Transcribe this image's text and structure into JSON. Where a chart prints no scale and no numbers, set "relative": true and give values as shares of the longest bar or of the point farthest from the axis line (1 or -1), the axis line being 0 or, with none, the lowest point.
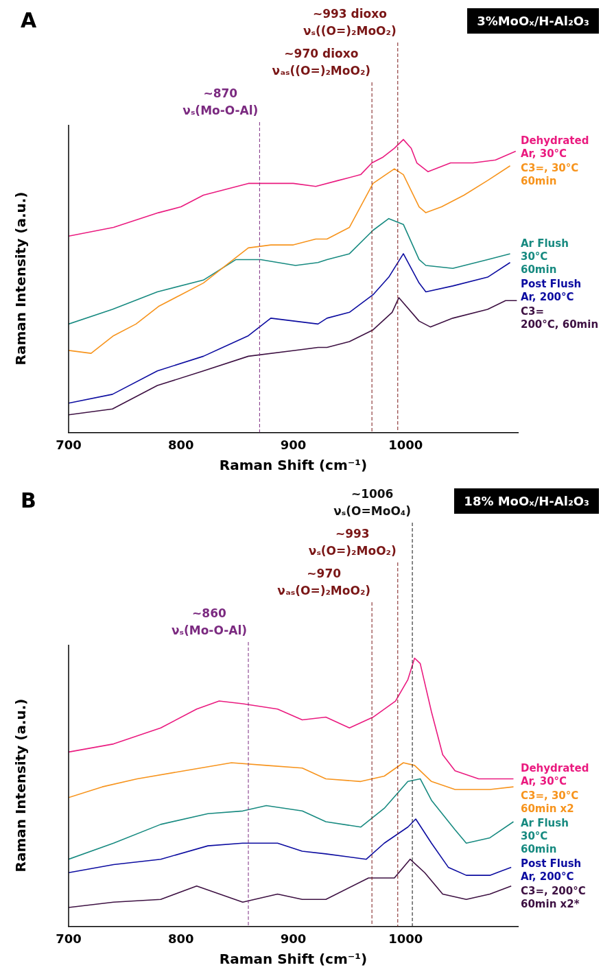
{
  "chart_data": [
    {
      "type": "line",
      "title": "3%MoOₓ/H-Al₂O₃",
      "annotations": [
        "A"
      ],
      "xlabel": "Raman Shift (cm⁻¹)",
      "ylabel": "Raman Intensity (a.u.)",
      "relative": true,
      "xlim": [
        700,
        1100
      ],
      "xticks": [
        700,
        800,
        900,
        1000
      ],
      "legend": false,
      "ref_lines": [
        {
          "axis": "x",
          "value": 870,
          "label": "~870\nνₛ(Mo-O-Al)",
          "color": "#7b2a80",
          "line_style": "dashed"
        },
        {
          "axis": "x",
          "value": 970,
          "label": "~970 dioxo\nνₐₛ((O=)₂MoO₂)",
          "color": "#7a1616",
          "line_style": "dashed"
        },
        {
          "axis": "x",
          "value": 993,
          "label": "~993 dioxo\nνₛ((O=)₂MoO₂)",
          "color": "#7a1616",
          "line_style": "dashed"
        }
      ],
      "series": [
        {
          "name": "Dehydrated\nAr, 30°C",
          "color": "#ea1a7f",
          "x": [
            700,
            740,
            780,
            800,
            820,
            840,
            860,
            880,
            900,
            920,
            940,
            960,
            970,
            980,
            990,
            998,
            1005,
            1010,
            1020,
            1040,
            1060,
            1080,
            1098
          ],
          "values": [
            0.67,
            0.7,
            0.75,
            0.77,
            0.81,
            0.83,
            0.85,
            0.85,
            0.85,
            0.84,
            0.86,
            0.88,
            0.92,
            0.94,
            0.97,
            1.0,
            0.97,
            0.92,
            0.89,
            0.92,
            0.92,
            0.93,
            0.96
          ]
        },
        {
          "name": "C3=, 30°C\n60min",
          "color": "#f7941d",
          "x": [
            700,
            720,
            740,
            760,
            780,
            800,
            820,
            840,
            860,
            880,
            900,
            920,
            930,
            950,
            971,
            990,
            998,
            1012,
            1018,
            1032,
            1052,
            1073,
            1093
          ],
          "values": [
            0.28,
            0.27,
            0.33,
            0.37,
            0.43,
            0.47,
            0.51,
            0.57,
            0.63,
            0.64,
            0.64,
            0.66,
            0.66,
            0.7,
            0.85,
            0.9,
            0.88,
            0.77,
            0.75,
            0.77,
            0.81,
            0.86,
            0.91
          ]
        },
        {
          "name": "Ar Flush\n30°C\n60min",
          "color": "#178a80",
          "x": [
            700,
            739,
            779,
            820,
            849,
            871,
            902,
            922,
            930,
            950,
            971,
            985,
            998,
            1012,
            1018,
            1042,
            1073,
            1093
          ],
          "values": [
            0.37,
            0.42,
            0.48,
            0.52,
            0.59,
            0.59,
            0.57,
            0.58,
            0.59,
            0.61,
            0.69,
            0.73,
            0.71,
            0.59,
            0.57,
            0.56,
            0.59,
            0.61
          ]
        },
        {
          "name": "Post Flush\nAr, 200°C",
          "color": "#0c0ca0",
          "x": [
            700,
            739,
            779,
            820,
            860,
            880,
            922,
            930,
            950,
            971,
            985,
            998,
            1012,
            1018,
            1042,
            1073,
            1093
          ],
          "values": [
            0.1,
            0.13,
            0.21,
            0.26,
            0.33,
            0.39,
            0.37,
            0.39,
            0.41,
            0.47,
            0.53,
            0.61,
            0.51,
            0.48,
            0.5,
            0.53,
            0.58
          ]
        },
        {
          "name": "C3=\n200°C, 60min",
          "color": "#3d1042",
          "x": [
            700,
            739,
            779,
            820,
            860,
            902,
            922,
            930,
            950,
            971,
            988,
            994,
            1012,
            1022,
            1042,
            1073,
            1089,
            1099
          ],
          "values": [
            0.06,
            0.08,
            0.16,
            0.21,
            0.26,
            0.28,
            0.29,
            0.29,
            0.31,
            0.35,
            0.41,
            0.46,
            0.38,
            0.36,
            0.39,
            0.42,
            0.45,
            0.45
          ]
        }
      ]
    },
    {
      "type": "line",
      "title": "18% MoOₓ/H-Al₂O₃",
      "annotations": [
        "B"
      ],
      "xlabel": "Raman Shift (cm⁻¹)",
      "ylabel": "Raman Intensity (a.u.)",
      "relative": true,
      "xlim": [
        700,
        1100
      ],
      "xticks": [
        700,
        800,
        900,
        1000
      ],
      "legend": false,
      "ref_lines": [
        {
          "axis": "x",
          "value": 860,
          "label": "~860\nνₛ(Mo-O-Al)",
          "color": "#7b2a80",
          "line_style": "dashed"
        },
        {
          "axis": "x",
          "value": 970,
          "label": "~970\nνₐₛ(O=)₂MoO₂)",
          "color": "#7a1616",
          "line_style": "dashed"
        },
        {
          "axis": "x",
          "value": 993,
          "label": "~993\nνₛ(O=)₂MoO₂)",
          "color": "#7a1616",
          "line_style": "dashed"
        },
        {
          "axis": "x",
          "value": 1006,
          "label": "~1006\nνₛ(O=MoO₄)",
          "color": "#111111",
          "line_style": "dashed"
        }
      ],
      "series": [
        {
          "name": "Dehydrated\nAr, 30°C",
          "color": "#ea1a7f",
          "x": [
            700,
            740,
            782,
            814,
            834,
            855,
            886,
            908,
            929,
            950,
            971,
            991,
            1002,
            1008,
            1013,
            1023,
            1033,
            1044,
            1065,
            1096
          ],
          "values": [
            0.65,
            0.68,
            0.74,
            0.81,
            0.84,
            0.83,
            0.81,
            0.77,
            0.78,
            0.74,
            0.78,
            0.84,
            0.92,
            1.0,
            0.98,
            0.8,
            0.64,
            0.58,
            0.55,
            0.55
          ]
        },
        {
          "name": "C3=, 30°C\n60min x2",
          "color": "#f7941d",
          "x": [
            700,
            730,
            761,
            803,
            845,
            876,
            908,
            929,
            960,
            981,
            998,
            1008,
            1023,
            1044,
            1075,
            1096
          ],
          "values": [
            0.48,
            0.52,
            0.55,
            0.58,
            0.61,
            0.6,
            0.59,
            0.55,
            0.54,
            0.56,
            0.61,
            0.6,
            0.54,
            0.51,
            0.51,
            0.52
          ]
        },
        {
          "name": "Ar Flush\n30°C\n60min",
          "color": "#178a80",
          "x": [
            700,
            740,
            782,
            824,
            855,
            876,
            908,
            929,
            960,
            981,
            1002,
            1013,
            1023,
            1044,
            1054,
            1075,
            1096
          ],
          "values": [
            0.25,
            0.31,
            0.38,
            0.42,
            0.43,
            0.45,
            0.43,
            0.39,
            0.37,
            0.44,
            0.54,
            0.55,
            0.47,
            0.36,
            0.31,
            0.33,
            0.39
          ]
        },
        {
          "name": "Post Flush\nAr, 200°C",
          "color": "#0c0ca0",
          "x": [
            700,
            740,
            782,
            824,
            855,
            886,
            908,
            929,
            965,
            981,
            1002,
            1009,
            1023,
            1038,
            1054,
            1075,
            1094
          ],
          "values": [
            0.2,
            0.23,
            0.25,
            0.3,
            0.31,
            0.31,
            0.28,
            0.27,
            0.25,
            0.31,
            0.37,
            0.4,
            0.31,
            0.22,
            0.19,
            0.19,
            0.22
          ]
        },
        {
          "name": "C3=, 200°C\n60min x2*",
          "color": "#3d1042",
          "x": [
            700,
            740,
            782,
            814,
            855,
            886,
            908,
            929,
            967,
            990,
            1004,
            1017,
            1033,
            1054,
            1075,
            1094
          ],
          "values": [
            0.07,
            0.09,
            0.1,
            0.15,
            0.09,
            0.12,
            0.1,
            0.1,
            0.18,
            0.18,
            0.25,
            0.2,
            0.12,
            0.1,
            0.12,
            0.15
          ]
        }
      ]
    }
  ]
}
